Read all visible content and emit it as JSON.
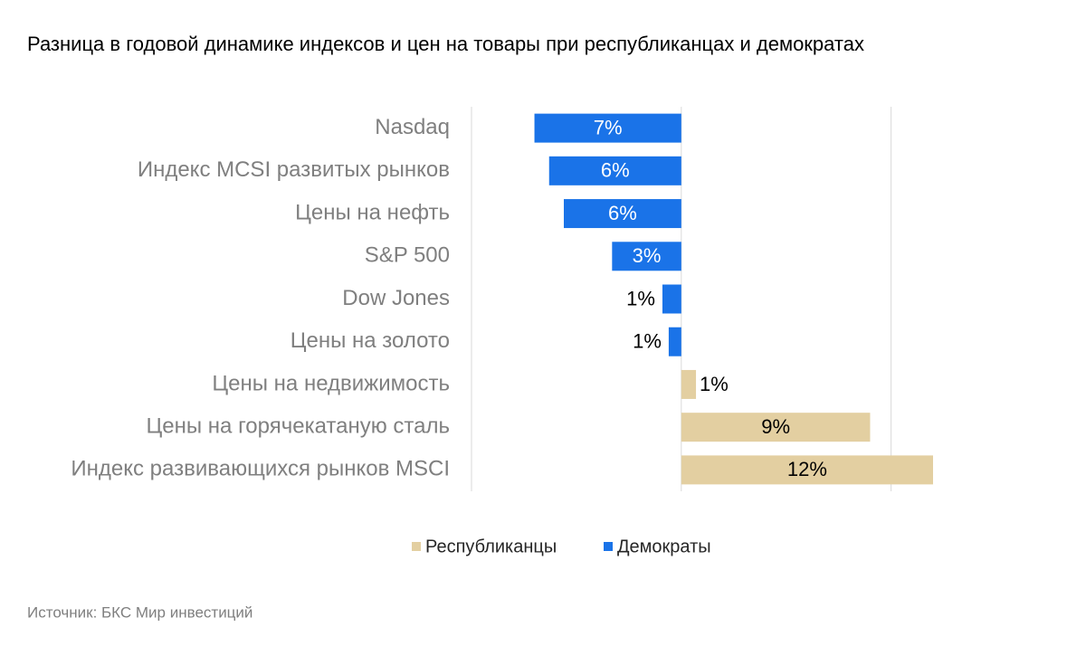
{
  "chart_data": {
    "type": "bar",
    "orientation": "horizontal",
    "title": "Разница в годовой динамике индексов и цен на товары при республиканцах и демократах",
    "source": "Источник: БКС Мир инвестиций",
    "categories": [
      "Nasdaq",
      "Индекс MCSI развитых рынков",
      "Цены на нефть",
      "S&P 500",
      "Dow Jones",
      "Цены на золото",
      "Цены на недвижимость",
      "Цены на горячекатаную сталь",
      "Индекс развивающихся рынков MSCI"
    ],
    "series": [
      {
        "name": "Республиканцы",
        "color": "#e3cfa1",
        "values": [
          null,
          null,
          null,
          null,
          null,
          null,
          0.7,
          9,
          12
        ],
        "value_labels": [
          null,
          null,
          null,
          null,
          null,
          null,
          "1%",
          "9%",
          "12%"
        ]
      },
      {
        "name": "Демократы",
        "color": "#1a73e8",
        "values": [
          -7,
          -6.3,
          -5.6,
          -3.3,
          -0.9,
          -0.6,
          null,
          null,
          null
        ],
        "value_labels": [
          "7%",
          "6%",
          "6%",
          "3%",
          "1%",
          "1%",
          null,
          null,
          null
        ]
      }
    ],
    "xlim": [
      -10,
      12
    ],
    "xticks": [
      -10,
      0,
      10
    ],
    "grid": true,
    "legend": "bottom"
  }
}
